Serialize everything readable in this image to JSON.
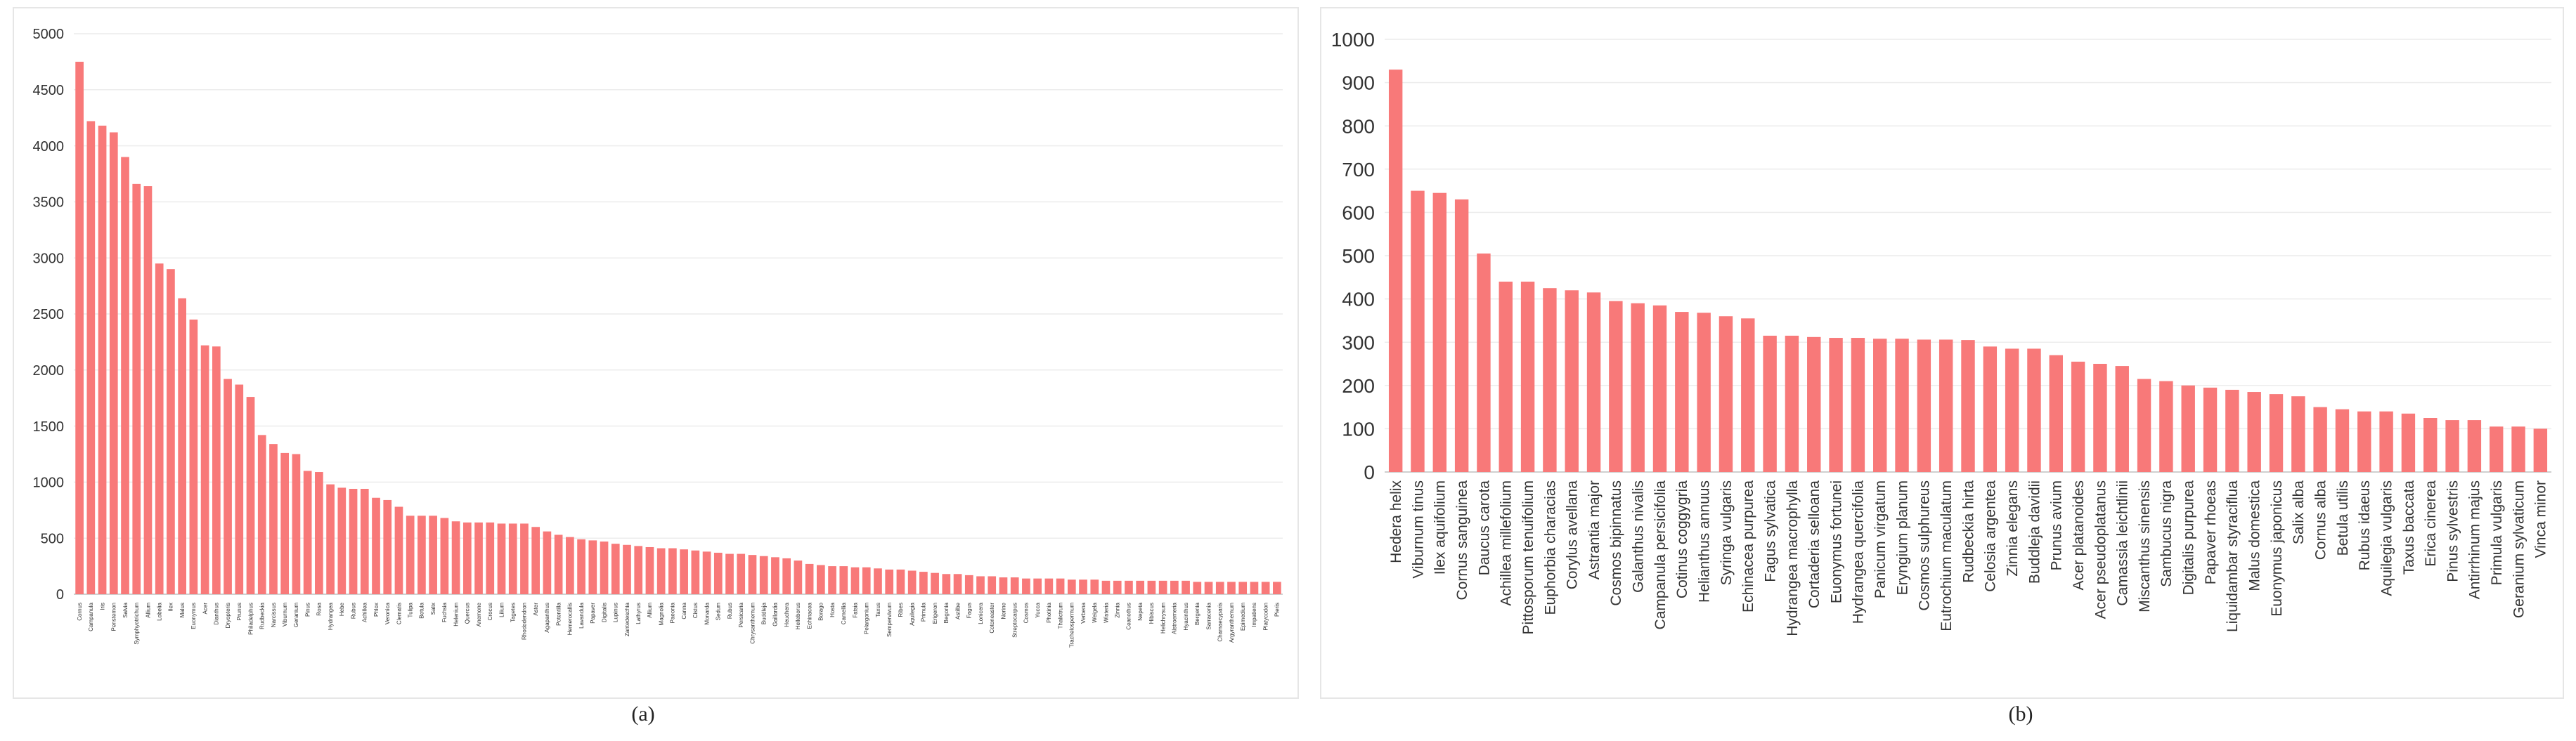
{
  "colors": {
    "bar": "#f87979",
    "grid": "#ececec",
    "axis": "#d0d0d0",
    "text": "#333333"
  },
  "chart_data": [
    {
      "type": "bar",
      "caption": "(a)",
      "ylim": [
        0,
        5000
      ],
      "yticks": [
        0,
        500,
        1000,
        1500,
        2000,
        2500,
        3000,
        3500,
        4000,
        4500,
        5000
      ],
      "grid": true,
      "categories": [
        "Cornus",
        "Campanula",
        "Iris",
        "Penstemon",
        "Salvia",
        "Symphyotrichum",
        "Allium",
        "Lobelia",
        "Ilex",
        "Malus",
        "Euonymus",
        "Acer",
        "Dianthus",
        "Dryopteris",
        "Prunus",
        "Philadelphus",
        "Rudbeckia",
        "Narcissus",
        "Viburnum",
        "Geranium",
        "Pinus",
        "Rosa",
        "Hydrangea",
        "Hebe",
        "Rubus",
        "Achillea",
        "Phlox",
        "Veronica",
        "Clematis",
        "Tulipa",
        "Betula",
        "Salix",
        "Fuchsia",
        "Helenium",
        "Quercus",
        "Anemone",
        "Crocus",
        "Lilium",
        "Tagetes",
        "Rhododendron",
        "Aster",
        "Agapanthus",
        "Potentilla",
        "Hemerocallis",
        "Lavandula",
        "Papaver",
        "Digitalis",
        "Lupinus",
        "Zantedeschia",
        "Lathyrus",
        "Allium",
        "Magnolia",
        "Paeonia",
        "Canna",
        "Cistus",
        "Monarda",
        "Sedum",
        "Rubus",
        "Persicaria",
        "Chrysanthemum",
        "Buddleja",
        "Gaillardia",
        "Heuchera",
        "Helleborus",
        "Echinacea",
        "Borago",
        "Hosta",
        "Camellia",
        "Fatsia",
        "Pelargonium",
        "Taxus",
        "Sempervivum",
        "Ribes",
        "Aquilegia",
        "Primula",
        "Erigeron",
        "Begonia",
        "Astilbe",
        "Fagus",
        "Lonicera",
        "Cotoneaster",
        "Nerine",
        "Streptocarpus",
        "Cosmos",
        "Yucca",
        "Photinia",
        "Thalictrum",
        "Trachelospermum",
        "Verbena",
        "Weigela",
        "Wisteria",
        "Zinnia",
        "Ceanothus",
        "Nepeta",
        "Hibiscus",
        "Helichrysum",
        "Alstroemeria",
        "Hyacinthus",
        "Bergenia",
        "Sarracenia",
        "Chamaecyparis",
        "Argyranthemum",
        "Epimedium",
        "Impatiens",
        "Platycodon",
        "Pieris"
      ],
      "values": [
        4750,
        4220,
        4180,
        4120,
        3900,
        3660,
        3640,
        2950,
        2900,
        2640,
        2450,
        2220,
        2210,
        1920,
        1870,
        1760,
        1420,
        1340,
        1260,
        1250,
        1100,
        1090,
        980,
        950,
        940,
        940,
        860,
        840,
        780,
        700,
        700,
        700,
        680,
        650,
        640,
        640,
        640,
        630,
        630,
        630,
        600,
        560,
        530,
        510,
        490,
        480,
        470,
        450,
        440,
        430,
        420,
        410,
        410,
        400,
        390,
        380,
        370,
        360,
        360,
        350,
        340,
        330,
        320,
        300,
        270,
        260,
        250,
        250,
        240,
        240,
        230,
        220,
        220,
        210,
        200,
        190,
        180,
        180,
        170,
        160,
        160,
        150,
        150,
        140,
        140,
        140,
        140,
        130,
        130,
        130,
        120,
        120,
        120,
        120,
        120,
        120,
        120,
        120,
        110,
        110,
        110,
        110,
        110,
        110,
        110,
        110
      ]
    },
    {
      "type": "bar",
      "caption": "(b)",
      "ylim": [
        0,
        1000
      ],
      "yticks": [
        0,
        100,
        200,
        300,
        400,
        500,
        600,
        700,
        800,
        900,
        1000
      ],
      "grid": true,
      "categories": [
        "Hedera helix",
        "Viburnum tinus",
        "Ilex aquifolium",
        "Cornus sanguinea",
        "Daucus carota",
        "Achillea millefolium",
        "Pittosporum tenuifolium",
        "Euphorbia characias",
        "Corylus avellana",
        "Astrantia major",
        "Cosmos bipinnatus",
        "Galanthus nivalis",
        "Campanula persicifolia",
        "Cotinus coggygria",
        "Helianthus annuus",
        "Syringa vulgaris",
        "Echinacea purpurea",
        "Fagus sylvatica",
        "Hydrangea macrophylla",
        "Cortaderia selloana",
        "Euonymus fortunei",
        "Hydrangea quercifolia",
        "Panicum virgatum",
        "Eryngium planum",
        "Cosmos sulphureus",
        "Eutrochium maculatum",
        "Rudbeckia hirta",
        "Celosia argentea",
        "Zinnia elegans",
        "Buddleja davidii",
        "Prunus avium",
        "Acer platanoides",
        "Acer pseudoplatanus",
        "Camassia leichtlinii",
        "Miscanthus sinensis",
        "Sambucus nigra",
        "Digitalis purpurea",
        "Papaver rhoeas",
        "Liquidambar styraciflua",
        "Malus domestica",
        "Euonymus japonicus",
        "Salix alba",
        "Cornus alba",
        "Betula utilis",
        "Rubus idaeus",
        "Aquilegia vulgaris",
        "Taxus baccata",
        "Erica cinerea",
        "Pinus sylvestris",
        "Antirrhinum majus",
        "Primula vulgaris",
        "Geranium sylvaticum",
        "Vinca minor"
      ],
      "values": [
        930,
        650,
        645,
        630,
        505,
        440,
        440,
        425,
        420,
        415,
        395,
        390,
        385,
        370,
        368,
        360,
        355,
        315,
        315,
        312,
        310,
        310,
        308,
        308,
        306,
        306,
        305,
        290,
        285,
        285,
        270,
        255,
        250,
        245,
        215,
        210,
        200,
        195,
        190,
        185,
        180,
        175,
        150,
        145,
        140,
        140,
        135,
        125,
        120,
        120,
        105,
        105,
        100
      ]
    }
  ]
}
